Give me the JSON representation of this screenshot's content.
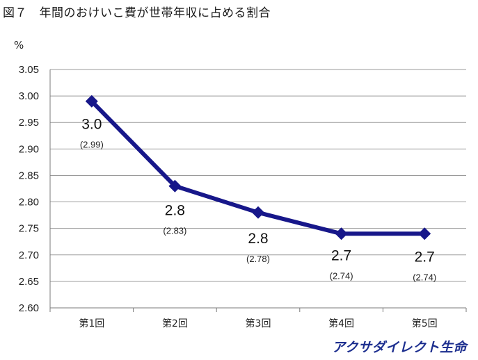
{
  "title": "図７　年間のおけいこ費が世帯年収に占める割合",
  "unit_label": "%",
  "brand": "アクサダイレクト生命",
  "colors": {
    "line": "#17178a",
    "grid": "#9a9a9a"
  },
  "chart_data": {
    "type": "line",
    "title": "図７　年間のおけいこ費が世帯年収に占める割合",
    "ylabel": "%",
    "ylim": [
      2.6,
      3.05
    ],
    "yticks": [
      "2.60",
      "2.65",
      "2.70",
      "2.75",
      "2.80",
      "2.85",
      "2.90",
      "2.95",
      "3.00",
      "3.05"
    ],
    "grid": true,
    "categories": [
      "第1回",
      "第2回",
      "第3回",
      "第4回",
      "第5回"
    ],
    "series": [
      {
        "values": [
          2.99,
          2.83,
          2.78,
          2.74,
          2.74
        ],
        "labels": [
          "3.0",
          "2.8",
          "2.8",
          "2.7",
          "2.7"
        ],
        "sublabels": [
          "(2.99)",
          "(2.83)",
          "(2.78)",
          "(2.74)",
          "(2.74)"
        ]
      }
    ]
  }
}
